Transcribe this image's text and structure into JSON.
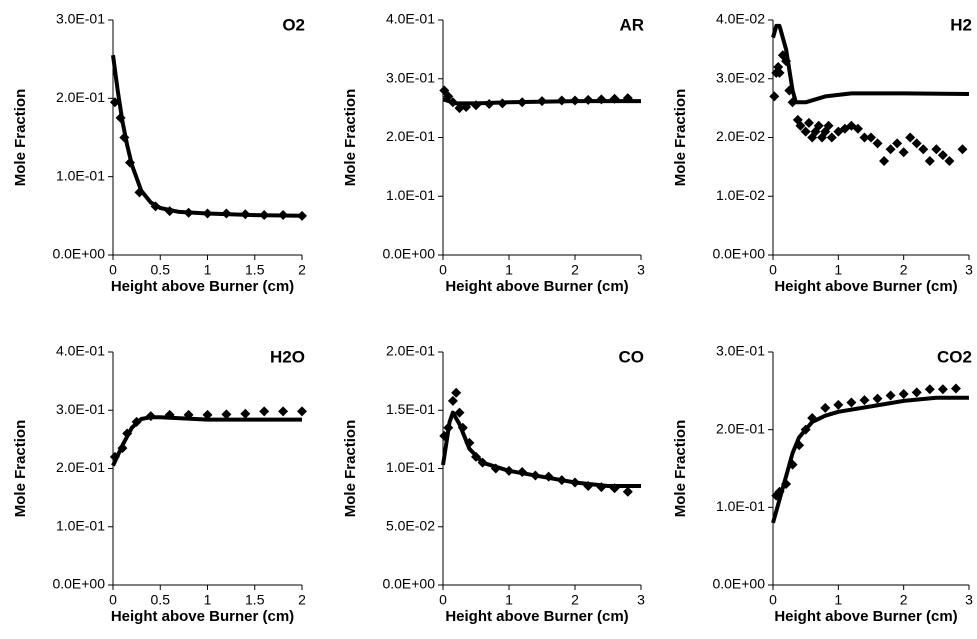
{
  "chart_data": [
    {
      "type": "line",
      "title": "O2",
      "xlabel": "Height above Burner (cm)",
      "ylabel": "Mole Fraction",
      "xlim": [
        0,
        2
      ],
      "ylim": [
        0,
        0.3
      ],
      "xticks": [
        0,
        0.5,
        1,
        1.5,
        2
      ],
      "yticks": [
        {
          "value": 0,
          "label": "0.0E+00"
        },
        {
          "value": 0.1,
          "label": "1.0E-01"
        },
        {
          "value": 0.2,
          "label": "2.0E-01"
        },
        {
          "value": 0.3,
          "label": "3.0E-01"
        }
      ],
      "series": [
        {
          "mode": "line",
          "color": "#000000",
          "x": [
            0,
            0.05,
            0.1,
            0.15,
            0.2,
            0.3,
            0.4,
            0.5,
            0.7,
            1,
            1.5,
            2
          ],
          "values": [
            0.255,
            0.21,
            0.17,
            0.14,
            0.115,
            0.082,
            0.067,
            0.06,
            0.055,
            0.053,
            0.051,
            0.05
          ]
        },
        {
          "mode": "markers",
          "color": "#000000",
          "x": [
            0.02,
            0.08,
            0.12,
            0.18,
            0.28,
            0.45,
            0.6,
            0.8,
            1,
            1.2,
            1.4,
            1.6,
            1.8,
            2
          ],
          "values": [
            0.195,
            0.175,
            0.15,
            0.118,
            0.08,
            0.062,
            0.056,
            0.054,
            0.053,
            0.053,
            0.052,
            0.051,
            0.051,
            0.05
          ]
        }
      ]
    },
    {
      "type": "line",
      "title": "AR",
      "xlabel": "Height above Burner (cm)",
      "ylabel": "Mole Fraction",
      "xlim": [
        0,
        3
      ],
      "ylim": [
        0,
        0.4
      ],
      "xticks": [
        0,
        1,
        2,
        3
      ],
      "yticks": [
        {
          "value": 0,
          "label": "0.0E+00"
        },
        {
          "value": 0.1,
          "label": "1.0E-01"
        },
        {
          "value": 0.2,
          "label": "2.0E-01"
        },
        {
          "value": 0.3,
          "label": "3.0E-01"
        },
        {
          "value": 0.4,
          "label": "4.0E-01"
        }
      ],
      "series": [
        {
          "mode": "line",
          "color": "#000000",
          "x": [
            0,
            0.2,
            0.5,
            1,
            2,
            3
          ],
          "values": [
            0.265,
            0.258,
            0.258,
            0.26,
            0.262,
            0.262
          ]
        },
        {
          "mode": "markers",
          "color": "#000000",
          "x": [
            0.02,
            0.08,
            0.15,
            0.25,
            0.35,
            0.5,
            0.7,
            0.9,
            1.2,
            1.5,
            1.8,
            2,
            2.2,
            2.4,
            2.6,
            2.8
          ],
          "values": [
            0.28,
            0.27,
            0.26,
            0.25,
            0.252,
            0.255,
            0.257,
            0.258,
            0.26,
            0.262,
            0.263,
            0.263,
            0.264,
            0.265,
            0.266,
            0.267
          ]
        }
      ]
    },
    {
      "type": "line",
      "title": "H2",
      "xlabel": "Height above Burner (cm)",
      "ylabel": "Mole Fraction",
      "xlim": [
        0,
        3
      ],
      "ylim": [
        0,
        0.04
      ],
      "xticks": [
        0,
        1,
        2,
        3
      ],
      "yticks": [
        {
          "value": 0,
          "label": "0.0E+00"
        },
        {
          "value": 0.01,
          "label": "1.0E-02"
        },
        {
          "value": 0.02,
          "label": "2.0E-02"
        },
        {
          "value": 0.03,
          "label": "3.0E-02"
        },
        {
          "value": 0.04,
          "label": "4.0E-02"
        }
      ],
      "series": [
        {
          "mode": "line",
          "color": "#000000",
          "x": [
            0,
            0.05,
            0.1,
            0.2,
            0.3,
            0.35,
            0.5,
            0.8,
            1.2,
            2,
            3
          ],
          "values": [
            0.037,
            0.039,
            0.039,
            0.035,
            0.028,
            0.026,
            0.026,
            0.027,
            0.0275,
            0.0275,
            0.0274
          ]
        },
        {
          "mode": "markers",
          "color": "#000000",
          "x": [
            0.02,
            0.05,
            0.08,
            0.1,
            0.15,
            0.2,
            0.25,
            0.3,
            0.38,
            0.42,
            0.5,
            0.55,
            0.6,
            0.65,
            0.7,
            0.75,
            0.8,
            0.85,
            0.9,
            1,
            1.1,
            1.2,
            1.3,
            1.4,
            1.5,
            1.6,
            1.7,
            1.8,
            1.9,
            2,
            2.1,
            2.2,
            2.3,
            2.4,
            2.5,
            2.6,
            2.7,
            2.9
          ],
          "values": [
            0.027,
            0.031,
            0.032,
            0.031,
            0.034,
            0.033,
            0.028,
            0.026,
            0.023,
            0.022,
            0.021,
            0.0225,
            0.02,
            0.021,
            0.022,
            0.02,
            0.021,
            0.022,
            0.02,
            0.021,
            0.0215,
            0.022,
            0.0215,
            0.02,
            0.02,
            0.019,
            0.016,
            0.018,
            0.019,
            0.0175,
            0.02,
            0.019,
            0.018,
            0.016,
            0.018,
            0.017,
            0.016,
            0.018
          ]
        }
      ]
    },
    {
      "type": "line",
      "title": "H2O",
      "xlabel": "Height above Burner (cm)",
      "ylabel": "Mole Fraction",
      "xlim": [
        0,
        2
      ],
      "ylim": [
        0,
        0.4
      ],
      "xticks": [
        0,
        0.5,
        1,
        1.5,
        2
      ],
      "yticks": [
        {
          "value": 0,
          "label": "0.0E+00"
        },
        {
          "value": 0.1,
          "label": "1.0E-01"
        },
        {
          "value": 0.2,
          "label": "2.0E-01"
        },
        {
          "value": 0.3,
          "label": "3.0E-01"
        },
        {
          "value": 0.4,
          "label": "4.0E-01"
        }
      ],
      "series": [
        {
          "mode": "line",
          "color": "#000000",
          "x": [
            0,
            0.1,
            0.2,
            0.3,
            0.4,
            0.5,
            1,
            2
          ],
          "values": [
            0.205,
            0.24,
            0.27,
            0.285,
            0.288,
            0.288,
            0.284,
            0.284
          ]
        },
        {
          "mode": "markers",
          "color": "#000000",
          "x": [
            0.02,
            0.1,
            0.15,
            0.25,
            0.4,
            0.6,
            0.8,
            1,
            1.2,
            1.4,
            1.6,
            1.8,
            2
          ],
          "values": [
            0.22,
            0.235,
            0.26,
            0.28,
            0.29,
            0.292,
            0.292,
            0.292,
            0.293,
            0.294,
            0.298,
            0.298,
            0.298
          ]
        }
      ]
    },
    {
      "type": "line",
      "title": "CO",
      "xlabel": "Height above Burner (cm)",
      "ylabel": "Mole Fraction",
      "xlim": [
        0,
        3
      ],
      "ylim": [
        0,
        0.2
      ],
      "xticks": [
        0,
        1,
        2,
        3
      ],
      "yticks": [
        {
          "value": 0,
          "label": "0.0E+00"
        },
        {
          "value": 0.05,
          "label": "5.0E-02"
        },
        {
          "value": 0.1,
          "label": "1.0E-01"
        },
        {
          "value": 0.15,
          "label": "1.5E-01"
        },
        {
          "value": 0.2,
          "label": "2.0E-01"
        }
      ],
      "series": [
        {
          "mode": "line",
          "color": "#000000",
          "x": [
            0,
            0.1,
            0.15,
            0.25,
            0.4,
            0.6,
            1,
            1.5,
            2,
            2.5,
            3
          ],
          "values": [
            0.103,
            0.14,
            0.148,
            0.138,
            0.117,
            0.105,
            0.098,
            0.093,
            0.088,
            0.085,
            0.085
          ]
        },
        {
          "mode": "markers",
          "color": "#000000",
          "x": [
            0.02,
            0.08,
            0.15,
            0.2,
            0.25,
            0.3,
            0.4,
            0.5,
            0.6,
            0.8,
            1,
            1.2,
            1.4,
            1.6,
            1.8,
            2,
            2.2,
            2.4,
            2.6,
            2.8
          ],
          "values": [
            0.128,
            0.135,
            0.158,
            0.165,
            0.148,
            0.135,
            0.122,
            0.11,
            0.105,
            0.1,
            0.098,
            0.097,
            0.094,
            0.093,
            0.09,
            0.088,
            0.085,
            0.084,
            0.083,
            0.08
          ]
        }
      ]
    },
    {
      "type": "line",
      "title": "CO2",
      "xlabel": "Height above Burner (cm)",
      "ylabel": "Mole Fraction",
      "xlim": [
        0,
        3
      ],
      "ylim": [
        0,
        0.3
      ],
      "xticks": [
        0,
        1,
        2,
        3
      ],
      "yticks": [
        {
          "value": 0,
          "label": "0.0E+00"
        },
        {
          "value": 0.1,
          "label": "1.0E-01"
        },
        {
          "value": 0.2,
          "label": "2.0E-01"
        },
        {
          "value": 0.3,
          "label": "3.0E-01"
        }
      ],
      "series": [
        {
          "mode": "line",
          "color": "#000000",
          "x": [
            0,
            0.1,
            0.2,
            0.3,
            0.4,
            0.6,
            0.8,
            1,
            1.5,
            2,
            2.5,
            3
          ],
          "values": [
            0.08,
            0.11,
            0.14,
            0.17,
            0.19,
            0.21,
            0.218,
            0.223,
            0.23,
            0.237,
            0.241,
            0.241
          ]
        },
        {
          "mode": "markers",
          "color": "#000000",
          "x": [
            0.05,
            0.1,
            0.2,
            0.3,
            0.4,
            0.5,
            0.6,
            0.8,
            1,
            1.2,
            1.4,
            1.6,
            1.8,
            2,
            2.2,
            2.4,
            2.6,
            2.8
          ],
          "values": [
            0.115,
            0.12,
            0.13,
            0.155,
            0.18,
            0.2,
            0.215,
            0.228,
            0.232,
            0.235,
            0.238,
            0.24,
            0.244,
            0.246,
            0.248,
            0.252,
            0.252,
            0.253
          ]
        }
      ]
    }
  ]
}
